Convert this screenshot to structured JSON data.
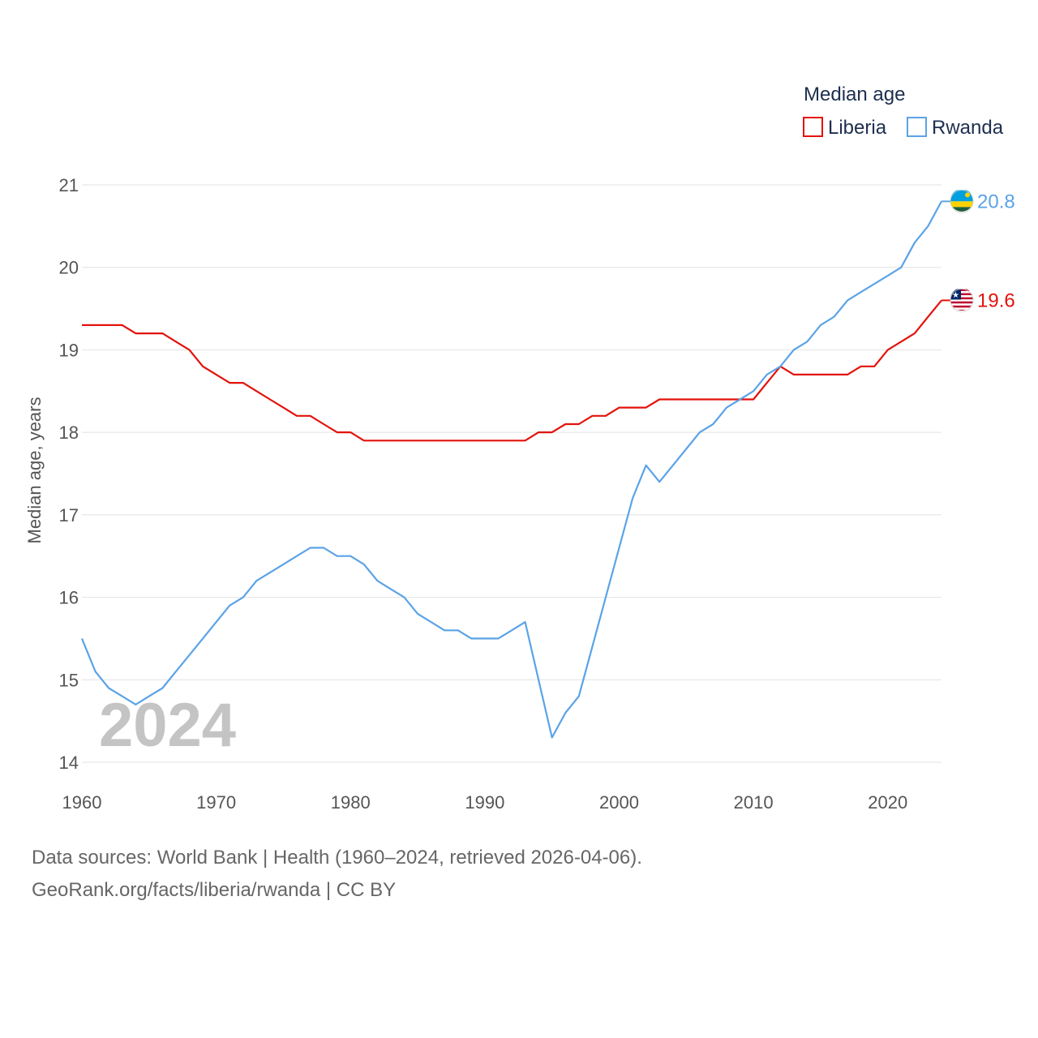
{
  "chart_data": {
    "type": "line",
    "title": "Median age",
    "xlabel": "",
    "ylabel": "Median age, years",
    "xlim": [
      1960,
      2024
    ],
    "ylim": [
      14,
      21
    ],
    "x_ticks": [
      1960,
      1970,
      1980,
      1990,
      2000,
      2010,
      2020
    ],
    "y_ticks": [
      14,
      15,
      16,
      17,
      18,
      19,
      20,
      21
    ],
    "grid": true,
    "legend_position": "top-right",
    "current_year": "2024",
    "x": [
      1960,
      1961,
      1962,
      1963,
      1964,
      1965,
      1966,
      1967,
      1968,
      1969,
      1970,
      1971,
      1972,
      1973,
      1974,
      1975,
      1976,
      1977,
      1978,
      1979,
      1980,
      1981,
      1982,
      1983,
      1984,
      1985,
      1986,
      1987,
      1988,
      1989,
      1990,
      1991,
      1992,
      1993,
      1994,
      1995,
      1996,
      1997,
      1998,
      1999,
      2000,
      2001,
      2002,
      2003,
      2004,
      2005,
      2006,
      2007,
      2008,
      2009,
      2010,
      2011,
      2012,
      2013,
      2014,
      2015,
      2016,
      2017,
      2018,
      2019,
      2020,
      2021,
      2022,
      2023,
      2024
    ],
    "series": [
      {
        "name": "Liberia",
        "color": "#e3120b",
        "end_label": "19.6",
        "flag": "liberia-flag",
        "values": [
          19.3,
          19.3,
          19.3,
          19.3,
          19.2,
          19.2,
          19.2,
          19.1,
          19.0,
          18.8,
          18.7,
          18.6,
          18.6,
          18.5,
          18.4,
          18.3,
          18.2,
          18.2,
          18.1,
          18.0,
          18.0,
          17.9,
          17.9,
          17.9,
          17.9,
          17.9,
          17.9,
          17.9,
          17.9,
          17.9,
          17.9,
          17.9,
          17.9,
          17.9,
          18.0,
          18.0,
          18.1,
          18.1,
          18.2,
          18.2,
          18.3,
          18.3,
          18.3,
          18.4,
          18.4,
          18.4,
          18.4,
          18.4,
          18.4,
          18.4,
          18.4,
          18.6,
          18.8,
          18.7,
          18.7,
          18.7,
          18.7,
          18.7,
          18.8,
          18.8,
          19.0,
          19.1,
          19.2,
          19.4,
          19.6
        ]
      },
      {
        "name": "Rwanda",
        "color": "#5ba3e6",
        "end_label": "20.8",
        "flag": "rwanda-flag",
        "values": [
          15.5,
          15.1,
          14.9,
          14.8,
          14.7,
          14.8,
          14.9,
          15.1,
          15.3,
          15.5,
          15.7,
          15.9,
          16.0,
          16.2,
          16.3,
          16.4,
          16.5,
          16.6,
          16.6,
          16.5,
          16.5,
          16.4,
          16.2,
          16.1,
          16.0,
          15.8,
          15.7,
          15.6,
          15.6,
          15.5,
          15.5,
          15.5,
          15.6,
          15.7,
          15.0,
          14.3,
          14.6,
          14.8,
          15.4,
          16.0,
          16.6,
          17.2,
          17.6,
          17.4,
          17.6,
          17.8,
          18.0,
          18.1,
          18.3,
          18.4,
          18.5,
          18.7,
          18.8,
          19.0,
          19.1,
          19.3,
          19.4,
          19.6,
          19.7,
          19.8,
          19.9,
          20.0,
          20.3,
          20.5,
          20.8
        ]
      }
    ]
  },
  "footer": {
    "line1": "Data sources: World Bank | Health (1960–2024, retrieved 2026-04-06).",
    "line2": "GeoRank.org/facts/liberia/rwanda | CC BY"
  }
}
